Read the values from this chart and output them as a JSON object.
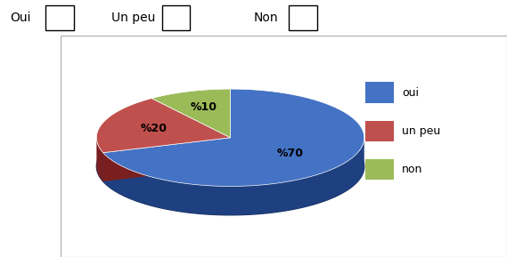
{
  "slices": [
    70,
    20,
    10
  ],
  "labels": [
    "oui",
    "un peu",
    "non"
  ],
  "colors": [
    "#4472C4",
    "#C0504D",
    "#9BBB59"
  ],
  "pct_labels": [
    "%70",
    "%20",
    "%10"
  ],
  "header_labels": [
    "Oui",
    "Un peu",
    "Non"
  ],
  "legend_labels": [
    "oui",
    "un peu",
    "non"
  ],
  "background_color": "#ffffff",
  "figure_size": [
    5.69,
    2.89
  ],
  "dpi": 100,
  "depth_colors": [
    "#1e4080",
    "#7a1f1f",
    "#4a6010"
  ],
  "bottom_color": "#1a3060"
}
